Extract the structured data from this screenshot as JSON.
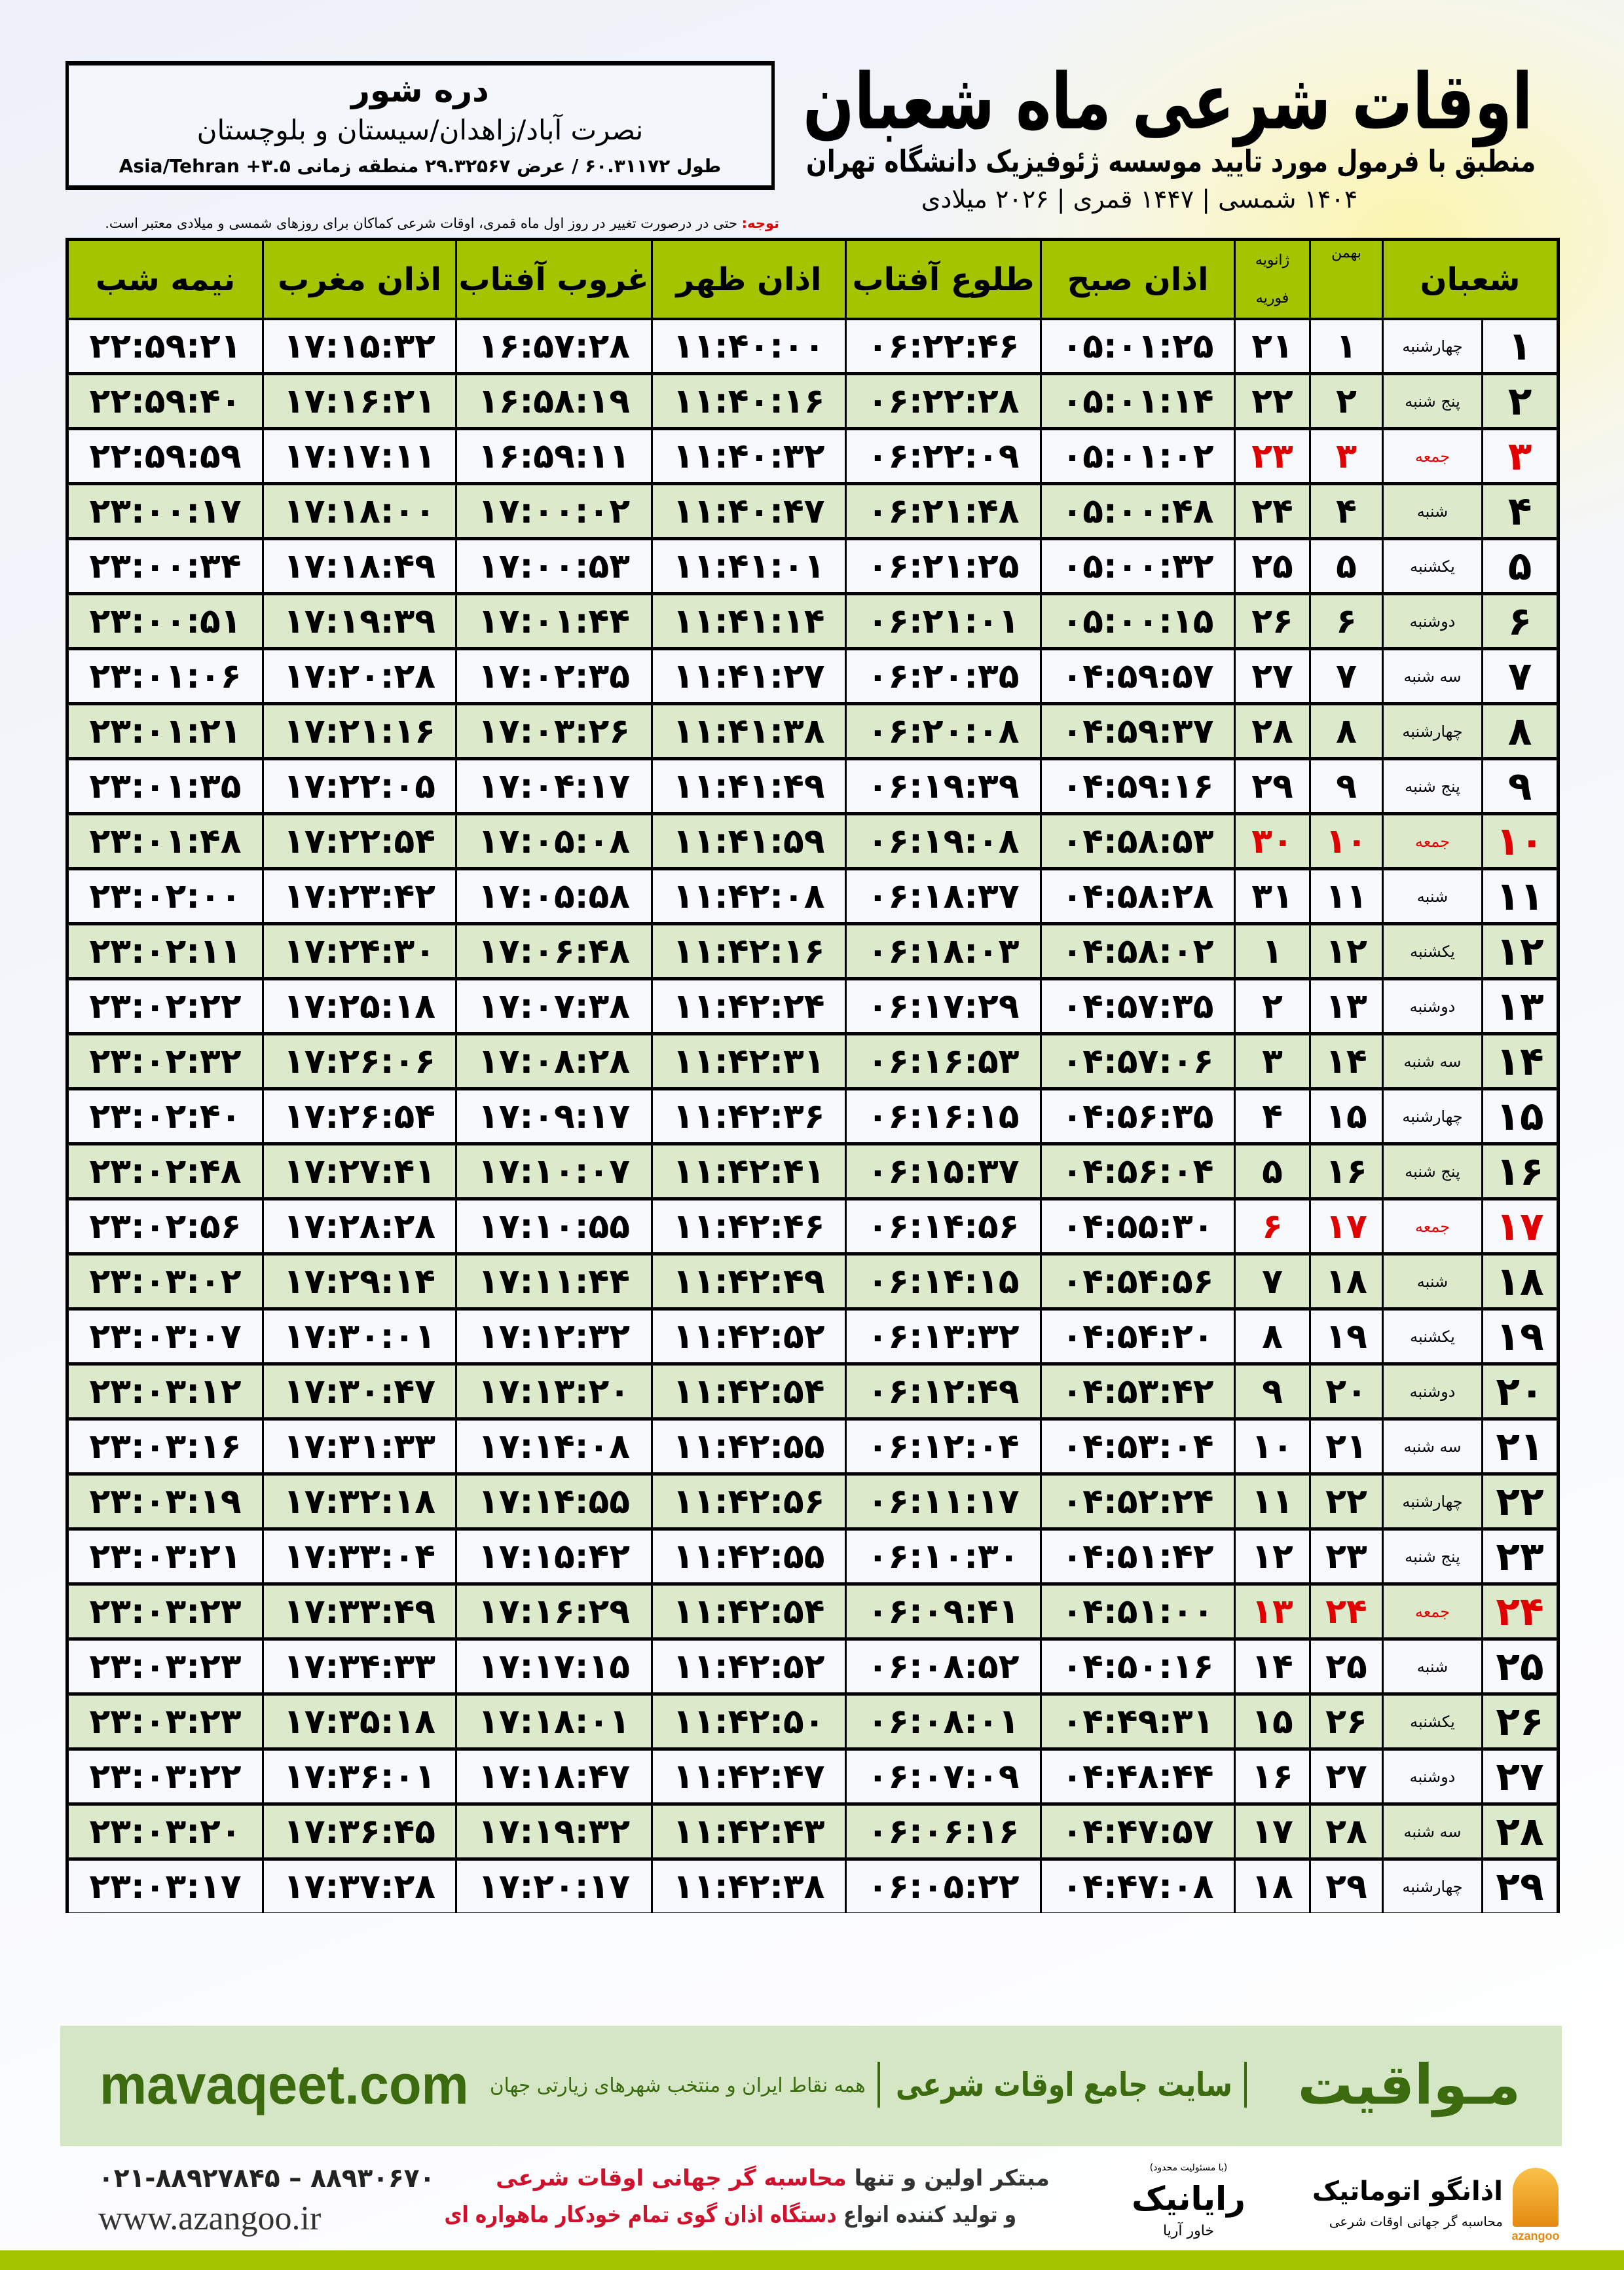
{
  "location": {
    "name": "دره شور",
    "path": "نصرت آباد/زاهدان/سیستان و بلوچستان",
    "coordinates": "طول ۶۰.۳۱۱۷۲ / عرض ۲۹.۳۲۵۶۷ منطقه زمانی ۳.۵+ Asia/Tehran"
  },
  "title": {
    "main": "اوقات شرعی ماه شعبان",
    "subtitle": "منطبق با فرمول مورد تایید موسسه ژئوفیزیک دانشگاه تهران",
    "dates": "۱۴۰۴ شمسی | ۱۴۴۷ قمری | ۲۰۲۶ میلادی"
  },
  "note": {
    "lead": "توجه:",
    "text": " حتی در درصورت تغییر در روز اول ماه قمری، اوقات شرعی کماکان برای روزهای شمسی و میلادی معتبر است."
  },
  "colors": {
    "header": "#a4c400",
    "row_alt": "#dde9cb",
    "friday": "#e00000",
    "brand": "#3b6b0e"
  },
  "table": {
    "headers": {
      "month": "شعبان",
      "bahman": "بهمن",
      "january": "ژانویه",
      "february": "فوریه",
      "fajr": "اذان صبح",
      "sunrise": "طلوع آفتاب",
      "dhuhr": "اذان ظهر",
      "sunset": "غروب آفتاب",
      "maghrib": "اذان مغرب",
      "midnight": "نیمه شب"
    },
    "rows": [
      [
        "۱",
        "چهارشنبه",
        "۱",
        "۲۱",
        "۰۵:۰۱:۲۵",
        "۰۶:۲۲:۴۶",
        "۱۱:۴۰:۰۰",
        "۱۶:۵۷:۲۸",
        "۱۷:۱۵:۳۲",
        "۲۲:۵۹:۲۱"
      ],
      [
        "۲",
        "پنج شنبه",
        "۲",
        "۲۲",
        "۰۵:۰۱:۱۴",
        "۰۶:۲۲:۲۸",
        "۱۱:۴۰:۱۶",
        "۱۶:۵۸:۱۹",
        "۱۷:۱۶:۲۱",
        "۲۲:۵۹:۴۰"
      ],
      [
        "۳",
        "جمعه",
        "۳",
        "۲۳",
        "۰۵:۰۱:۰۲",
        "۰۶:۲۲:۰۹",
        "۱۱:۴۰:۳۲",
        "۱۶:۵۹:۱۱",
        "۱۷:۱۷:۱۱",
        "۲۲:۵۹:۵۹"
      ],
      [
        "۴",
        "شنبه",
        "۴",
        "۲۴",
        "۰۵:۰۰:۴۸",
        "۰۶:۲۱:۴۸",
        "۱۱:۴۰:۴۷",
        "۱۷:۰۰:۰۲",
        "۱۷:۱۸:۰۰",
        "۲۳:۰۰:۱۷"
      ],
      [
        "۵",
        "یکشنبه",
        "۵",
        "۲۵",
        "۰۵:۰۰:۳۲",
        "۰۶:۲۱:۲۵",
        "۱۱:۴۱:۰۱",
        "۱۷:۰۰:۵۳",
        "۱۷:۱۸:۴۹",
        "۲۳:۰۰:۳۴"
      ],
      [
        "۶",
        "دوشنبه",
        "۶",
        "۲۶",
        "۰۵:۰۰:۱۵",
        "۰۶:۲۱:۰۱",
        "۱۱:۴۱:۱۴",
        "۱۷:۰۱:۴۴",
        "۱۷:۱۹:۳۹",
        "۲۳:۰۰:۵۱"
      ],
      [
        "۷",
        "سه شنبه",
        "۷",
        "۲۷",
        "۰۴:۵۹:۵۷",
        "۰۶:۲۰:۳۵",
        "۱۱:۴۱:۲۷",
        "۱۷:۰۲:۳۵",
        "۱۷:۲۰:۲۸",
        "۲۳:۰۱:۰۶"
      ],
      [
        "۸",
        "چهارشنبه",
        "۸",
        "۲۸",
        "۰۴:۵۹:۳۷",
        "۰۶:۲۰:۰۸",
        "۱۱:۴۱:۳۸",
        "۱۷:۰۳:۲۶",
        "۱۷:۲۱:۱۶",
        "۲۳:۰۱:۲۱"
      ],
      [
        "۹",
        "پنج شنبه",
        "۹",
        "۲۹",
        "۰۴:۵۹:۱۶",
        "۰۶:۱۹:۳۹",
        "۱۱:۴۱:۴۹",
        "۱۷:۰۴:۱۷",
        "۱۷:۲۲:۰۵",
        "۲۳:۰۱:۳۵"
      ],
      [
        "۱۰",
        "جمعه",
        "۱۰",
        "۳۰",
        "۰۴:۵۸:۵۳",
        "۰۶:۱۹:۰۸",
        "۱۱:۴۱:۵۹",
        "۱۷:۰۵:۰۸",
        "۱۷:۲۲:۵۴",
        "۲۳:۰۱:۴۸"
      ],
      [
        "۱۱",
        "شنبه",
        "۱۱",
        "۳۱",
        "۰۴:۵۸:۲۸",
        "۰۶:۱۸:۳۷",
        "۱۱:۴۲:۰۸",
        "۱۷:۰۵:۵۸",
        "۱۷:۲۳:۴۲",
        "۲۳:۰۲:۰۰"
      ],
      [
        "۱۲",
        "یکشنبه",
        "۱۲",
        "۱",
        "۰۴:۵۸:۰۲",
        "۰۶:۱۸:۰۳",
        "۱۱:۴۲:۱۶",
        "۱۷:۰۶:۴۸",
        "۱۷:۲۴:۳۰",
        "۲۳:۰۲:۱۱"
      ],
      [
        "۱۳",
        "دوشنبه",
        "۱۳",
        "۲",
        "۰۴:۵۷:۳۵",
        "۰۶:۱۷:۲۹",
        "۱۱:۴۲:۲۴",
        "۱۷:۰۷:۳۸",
        "۱۷:۲۵:۱۸",
        "۲۳:۰۲:۲۲"
      ],
      [
        "۱۴",
        "سه شنبه",
        "۱۴",
        "۳",
        "۰۴:۵۷:۰۶",
        "۰۶:۱۶:۵۳",
        "۱۱:۴۲:۳۱",
        "۱۷:۰۸:۲۸",
        "۱۷:۲۶:۰۶",
        "۲۳:۰۲:۳۲"
      ],
      [
        "۱۵",
        "چهارشنبه",
        "۱۵",
        "۴",
        "۰۴:۵۶:۳۵",
        "۰۶:۱۶:۱۵",
        "۱۱:۴۲:۳۶",
        "۱۷:۰۹:۱۷",
        "۱۷:۲۶:۵۴",
        "۲۳:۰۲:۴۰"
      ],
      [
        "۱۶",
        "پنج شنبه",
        "۱۶",
        "۵",
        "۰۴:۵۶:۰۴",
        "۰۶:۱۵:۳۷",
        "۱۱:۴۲:۴۱",
        "۱۷:۱۰:۰۷",
        "۱۷:۲۷:۴۱",
        "۲۳:۰۲:۴۸"
      ],
      [
        "۱۷",
        "جمعه",
        "۱۷",
        "۶",
        "۰۴:۵۵:۳۰",
        "۰۶:۱۴:۵۶",
        "۱۱:۴۲:۴۶",
        "۱۷:۱۰:۵۵",
        "۱۷:۲۸:۲۸",
        "۲۳:۰۲:۵۶"
      ],
      [
        "۱۸",
        "شنبه",
        "۱۸",
        "۷",
        "۰۴:۵۴:۵۶",
        "۰۶:۱۴:۱۵",
        "۱۱:۴۲:۴۹",
        "۱۷:۱۱:۴۴",
        "۱۷:۲۹:۱۴",
        "۲۳:۰۳:۰۲"
      ],
      [
        "۱۹",
        "یکشنبه",
        "۱۹",
        "۸",
        "۰۴:۵۴:۲۰",
        "۰۶:۱۳:۳۲",
        "۱۱:۴۲:۵۲",
        "۱۷:۱۲:۳۲",
        "۱۷:۳۰:۰۱",
        "۲۳:۰۳:۰۷"
      ],
      [
        "۲۰",
        "دوشنبه",
        "۲۰",
        "۹",
        "۰۴:۵۳:۴۲",
        "۰۶:۱۲:۴۹",
        "۱۱:۴۲:۵۴",
        "۱۷:۱۳:۲۰",
        "۱۷:۳۰:۴۷",
        "۲۳:۰۳:۱۲"
      ],
      [
        "۲۱",
        "سه شنبه",
        "۲۱",
        "۱۰",
        "۰۴:۵۳:۰۴",
        "۰۶:۱۲:۰۴",
        "۱۱:۴۲:۵۵",
        "۱۷:۱۴:۰۸",
        "۱۷:۳۱:۳۳",
        "۲۳:۰۳:۱۶"
      ],
      [
        "۲۲",
        "چهارشنبه",
        "۲۲",
        "۱۱",
        "۰۴:۵۲:۲۴",
        "۰۶:۱۱:۱۷",
        "۱۱:۴۲:۵۶",
        "۱۷:۱۴:۵۵",
        "۱۷:۳۲:۱۸",
        "۲۳:۰۳:۱۹"
      ],
      [
        "۲۳",
        "پنج شنبه",
        "۲۳",
        "۱۲",
        "۰۴:۵۱:۴۲",
        "۰۶:۱۰:۳۰",
        "۱۱:۴۲:۵۵",
        "۱۷:۱۵:۴۲",
        "۱۷:۳۳:۰۴",
        "۲۳:۰۳:۲۱"
      ],
      [
        "۲۴",
        "جمعه",
        "۲۴",
        "۱۳",
        "۰۴:۵۱:۰۰",
        "۰۶:۰۹:۴۱",
        "۱۱:۴۲:۵۴",
        "۱۷:۱۶:۲۹",
        "۱۷:۳۳:۴۹",
        "۲۳:۰۳:۲۳"
      ],
      [
        "۲۵",
        "شنبه",
        "۲۵",
        "۱۴",
        "۰۴:۵۰:۱۶",
        "۰۶:۰۸:۵۲",
        "۱۱:۴۲:۵۲",
        "۱۷:۱۷:۱۵",
        "۱۷:۳۴:۳۳",
        "۲۳:۰۳:۲۳"
      ],
      [
        "۲۶",
        "یکشنبه",
        "۲۶",
        "۱۵",
        "۰۴:۴۹:۳۱",
        "۰۶:۰۸:۰۱",
        "۱۱:۴۲:۵۰",
        "۱۷:۱۸:۰۱",
        "۱۷:۳۵:۱۸",
        "۲۳:۰۳:۲۳"
      ],
      [
        "۲۷",
        "دوشنبه",
        "۲۷",
        "۱۶",
        "۰۴:۴۸:۴۴",
        "۰۶:۰۷:۰۹",
        "۱۱:۴۲:۴۷",
        "۱۷:۱۸:۴۷",
        "۱۷:۳۶:۰۱",
        "۲۳:۰۳:۲۲"
      ],
      [
        "۲۸",
        "سه شنبه",
        "۲۸",
        "۱۷",
        "۰۴:۴۷:۵۷",
        "۰۶:۰۶:۱۶",
        "۱۱:۴۲:۴۳",
        "۱۷:۱۹:۳۲",
        "۱۷:۳۶:۴۵",
        "۲۳:۰۳:۲۰"
      ],
      [
        "۲۹",
        "چهارشنبه",
        "۲۹",
        "۱۸",
        "۰۴:۴۷:۰۸",
        "۰۶:۰۵:۲۲",
        "۱۱:۴۲:۳۸",
        "۱۷:۲۰:۱۷",
        "۱۷:۳۷:۲۸",
        "۲۳:۰۳:۱۷"
      ]
    ]
  },
  "footer": {
    "banner": {
      "brand": "مـواقیت",
      "slogan": "سایت جامع اوقات شرعی",
      "slogan2": "همه نقاط ایران و منتخب شهرهای زیارتی جهان",
      "url": "mavaqeet.com"
    },
    "phone": "۰۲۱-۸۸۹۲۷۸۴۵ – ۸۸۹۳۰۶۷۰",
    "website": "www.azangoo.ir",
    "promo_line1_a": "مبتکر اولین و تنها ",
    "promo_line1_b": "محاسبه گر جهانی اوقات شرعی",
    "promo_line2_a": "و تولید کننده انواع ",
    "promo_line2_b": "دستگاه اذان گوی تمام خودکار ماهواره ای",
    "logo_rayanik": {
      "name": "رایانیک",
      "sub": "خاور آریا",
      "tag": "(با مسئولیت محدود)"
    },
    "logo_azangoo": {
      "name": "اذانگو اتوماتیک",
      "tag": "محاسبه گر جهانی اوقات شرعی",
      "en": "azangoo"
    }
  }
}
